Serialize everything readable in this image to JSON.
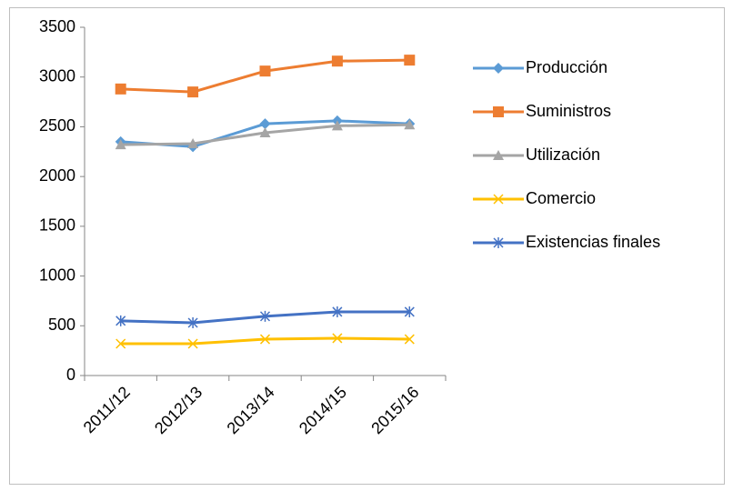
{
  "chart_data": {
    "type": "line",
    "categories": [
      "2011/12",
      "2012/13",
      "2013/14",
      "2014/15",
      "2015/16"
    ],
    "series": [
      {
        "name": "Producción",
        "color": "#5b9bd5",
        "marker": "diamond",
        "values": [
          2350,
          2300,
          2530,
          2560,
          2530
        ]
      },
      {
        "name": "Suministros",
        "color": "#ed7d31",
        "marker": "square",
        "values": [
          2880,
          2850,
          3060,
          3160,
          3170
        ]
      },
      {
        "name": "Utilización",
        "color": "#a5a5a5",
        "marker": "triangle",
        "values": [
          2320,
          2330,
          2440,
          2510,
          2520
        ]
      },
      {
        "name": "Comercio",
        "color": "#ffc000",
        "marker": "x",
        "values": [
          320,
          320,
          365,
          375,
          365
        ]
      },
      {
        "name": "Existencias finales",
        "color": "#4472c4",
        "marker": "star",
        "values": [
          550,
          530,
          595,
          640,
          640
        ]
      }
    ],
    "ylim": [
      0,
      3500
    ],
    "yticks": [
      0,
      500,
      1000,
      1500,
      2000,
      2500,
      3000,
      3500
    ],
    "grid": false,
    "legend": "right"
  }
}
